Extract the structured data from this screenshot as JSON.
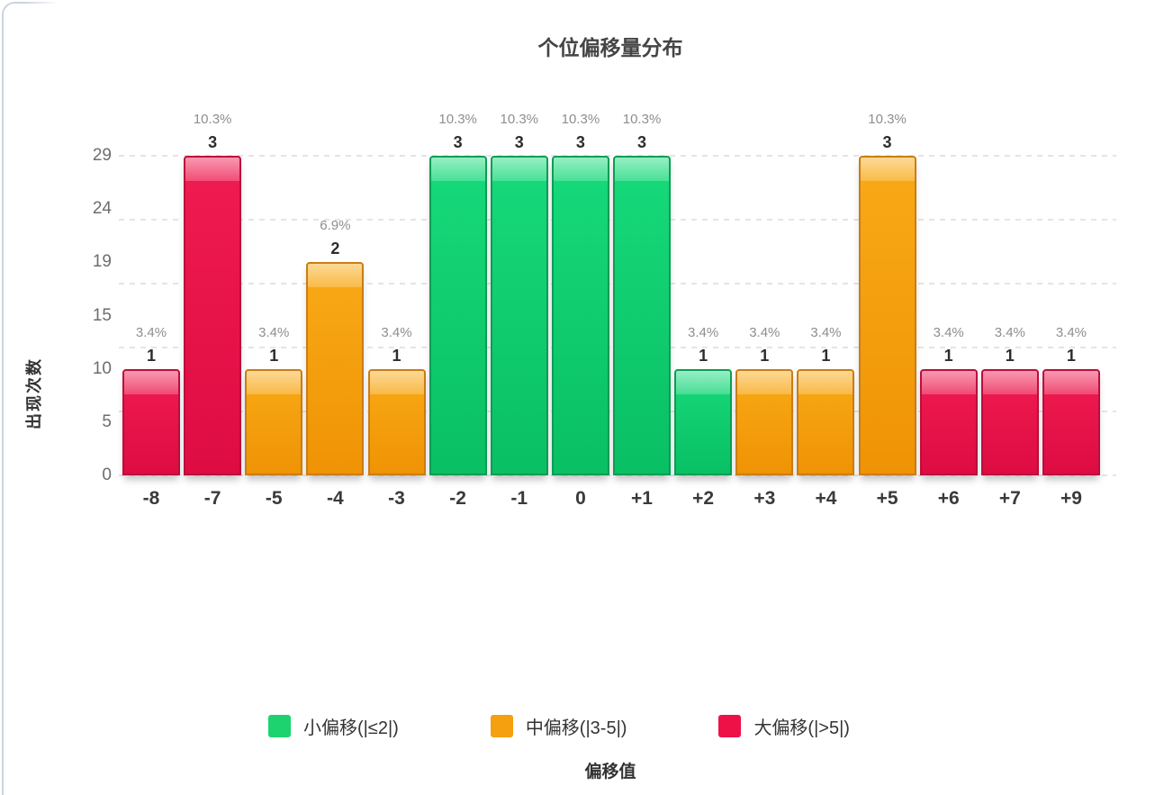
{
  "chart_data": {
    "type": "bar",
    "title": "个位偏移量分布",
    "xlabel": "偏移值",
    "ylabel": "出现次数",
    "categories": [
      "-8",
      "-7",
      "-5",
      "-4",
      "-3",
      "-2",
      "-1",
      "0",
      "+1",
      "+2",
      "+3",
      "+4",
      "+5",
      "+6",
      "+7",
      "+9"
    ],
    "values": [
      1,
      3,
      1,
      2,
      1,
      3,
      3,
      3,
      3,
      1,
      1,
      1,
      3,
      1,
      1,
      1
    ],
    "percent_labels": [
      "3.4%",
      "10.3%",
      "3.4%",
      "6.9%",
      "3.4%",
      "10.3%",
      "10.3%",
      "10.3%",
      "10.3%",
      "3.4%",
      "3.4%",
      "3.4%",
      "10.3%",
      "3.4%",
      "3.4%",
      "3.4%"
    ],
    "bar_groups": [
      "large",
      "large",
      "mid",
      "mid",
      "mid",
      "small",
      "small",
      "small",
      "small",
      "small",
      "mid",
      "mid",
      "mid",
      "large",
      "large",
      "large"
    ],
    "y_ticks": [
      "0",
      "5",
      "10",
      "15",
      "19",
      "24",
      "29"
    ],
    "ylim": [
      0,
      29
    ],
    "value_range_of_bars": [
      0,
      3
    ],
    "grid": "horizontal dashed, 5 equal intervals",
    "legend_position": "bottom",
    "legend": [
      {
        "label": "小偏移(|≤2|)",
        "group": "small"
      },
      {
        "label": "中偏移(|3-5|)",
        "group": "mid"
      },
      {
        "label": "大偏移(|>5|)",
        "group": "large"
      }
    ]
  },
  "colors": {
    "small": {
      "fill_top": "#16da7b",
      "fill_bottom": "#0abf64",
      "border": "#0b9e53",
      "legend": "#1dd36f"
    },
    "mid": {
      "fill_top": "#f9aa16",
      "fill_bottom": "#ef9305",
      "border": "#ca7d15",
      "legend": "#f5a00f"
    },
    "large": {
      "fill_top": "#f01c51",
      "fill_bottom": "#dd0c42",
      "border": "#bb0e3c",
      "legend": "#ed1148"
    },
    "grid_line": "#e4e4e8",
    "card_border": "#ccd2dc",
    "title_text": "#454545",
    "axis_title_text": "#333333",
    "y_tick_text": "#6d6d6d",
    "x_tick_text": "#3a3a3a",
    "percent_text": "#8e8e8e",
    "count_text": "#2d2d2d"
  }
}
